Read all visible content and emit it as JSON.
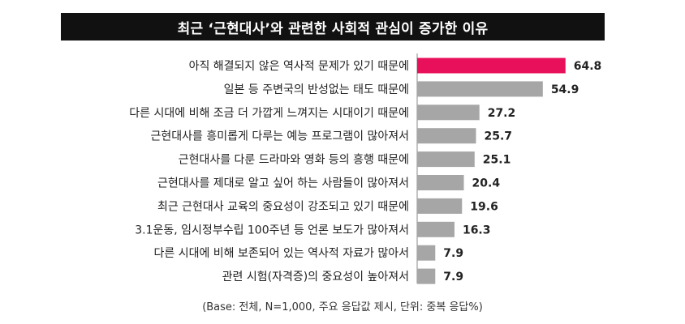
{
  "chart_data": {
    "type": "bar",
    "orientation": "horizontal",
    "title": "최근 ‘근현대사’와 관련한 사회적 관심이 증가한 이유",
    "categories": [
      "아직 해결되지 않은 역사적 문제가 있기 때문에",
      "일본 등 주변국의 반성없는 태도 때문에",
      "다른 시대에 비해 조금 더 가깝게 느껴지는 시대이기 때문에",
      "근현대사를 흥미롭게 다루는 예능 프로그램이 많아져서",
      "근현대사를 다룬 드라마와 영화 등의 흥행 때문에",
      "근현대사를 제대로 알고 싶어 하는 사람들이 많아져서",
      "최근 근현대사 교육의 중요성이 강조되고 있기 때문에",
      "3.1운동, 임시정부수립 100주년 등 언론 보도가 많아져서",
      "다른 시대에 비해 보존되어 있는 역사적 자료가 많아서",
      "관련 시험(자격증)의 중요성이 높아져서"
    ],
    "values": [
      64.8,
      54.9,
      27.2,
      25.7,
      25.1,
      20.4,
      19.6,
      16.3,
      7.9,
      7.9
    ],
    "value_labels": [
      "64.8",
      "54.9",
      "27.2",
      "25.7",
      "25.1",
      "20.4",
      "19.6",
      "16.3",
      "7.9",
      "7.9"
    ],
    "highlight_color": "#e8105a",
    "bar_color": "#a6a6a6",
    "xlim": [
      0,
      100
    ]
  },
  "footnote": "(Base: 전체, N=1,000, 주요 응답값 제시, 단위: 중복 응답%)"
}
